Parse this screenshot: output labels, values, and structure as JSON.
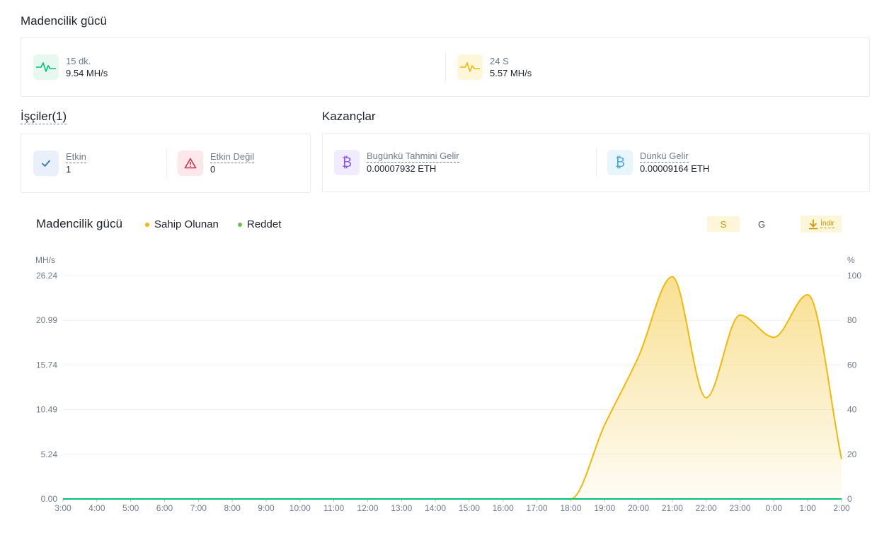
{
  "hashrate_section": {
    "title": "Madencilik gücü",
    "items": [
      {
        "label": "15 dk.",
        "value": "9.54 MH/s",
        "icon": "pulse-icon",
        "color": "#02c076"
      },
      {
        "label": "24 S",
        "value": "5.57 MH/s",
        "icon": "pulse-icon",
        "color": "#f0b90b"
      }
    ]
  },
  "workers_section": {
    "title": "İşçiler(1)",
    "items": [
      {
        "label": "Etkin",
        "value": "1",
        "icon": "check-icon",
        "color": "#3375bb"
      },
      {
        "label": "Etkin Değil",
        "value": "0",
        "icon": "warning-icon",
        "color": "#cf304a"
      }
    ]
  },
  "earnings_section": {
    "title": "Kazançlar",
    "items": [
      {
        "label": "Bugünkü Tahmini Gelir",
        "value": "0.00007932 ETH",
        "icon": "bitcoin-icon",
        "color": "#8754f5"
      },
      {
        "label": "Dünkü Gelir",
        "value": "0.00009164 ETH",
        "icon": "bitcoin-icon",
        "color": "#4aa8d8"
      }
    ]
  },
  "chart_header": {
    "title": "Madencilik gücü",
    "legend": [
      {
        "label": "Sahip Olunan",
        "color": "#f0b90b"
      },
      {
        "label": "Reddet",
        "color": "#6fc342"
      }
    ],
    "toggles": [
      "S",
      "G"
    ],
    "active_toggle": "S",
    "download_label": "İndir"
  },
  "chart_data": {
    "type": "area",
    "y_left_label": "MH/s",
    "y_right_label": "%",
    "y_left_ticks": [
      "0.00",
      "5.24",
      "10.49",
      "15.74",
      "20.99",
      "26.24"
    ],
    "y_right_ticks": [
      "0",
      "20",
      "40",
      "60",
      "80",
      "100"
    ],
    "ylim": [
      0,
      26.24
    ],
    "categories": [
      "3:00",
      "4:00",
      "5:00",
      "6:00",
      "7:00",
      "8:00",
      "9:00",
      "10:00",
      "11:00",
      "12:00",
      "13:00",
      "14:00",
      "15:00",
      "16:00",
      "17:00",
      "18:00",
      "19:00",
      "20:00",
      "21:00",
      "22:00",
      "23:00",
      "0:00",
      "1:00",
      "2:00"
    ],
    "series": [
      {
        "name": "Sahip Olunan",
        "color": "#f0b90b",
        "values": [
          0,
          0,
          0,
          0,
          0,
          0,
          0,
          0,
          0,
          0,
          0,
          0,
          0,
          0,
          0,
          0,
          8.7,
          16.7,
          26.1,
          11.9,
          21.6,
          19.0,
          24.0,
          4.7
        ]
      },
      {
        "name": "Reddet",
        "color": "#02c076",
        "values": [
          0,
          0,
          0,
          0,
          0,
          0,
          0,
          0,
          0,
          0,
          0,
          0,
          0,
          0,
          0,
          0,
          0,
          0,
          0,
          0,
          0,
          0,
          0,
          0
        ]
      }
    ]
  }
}
